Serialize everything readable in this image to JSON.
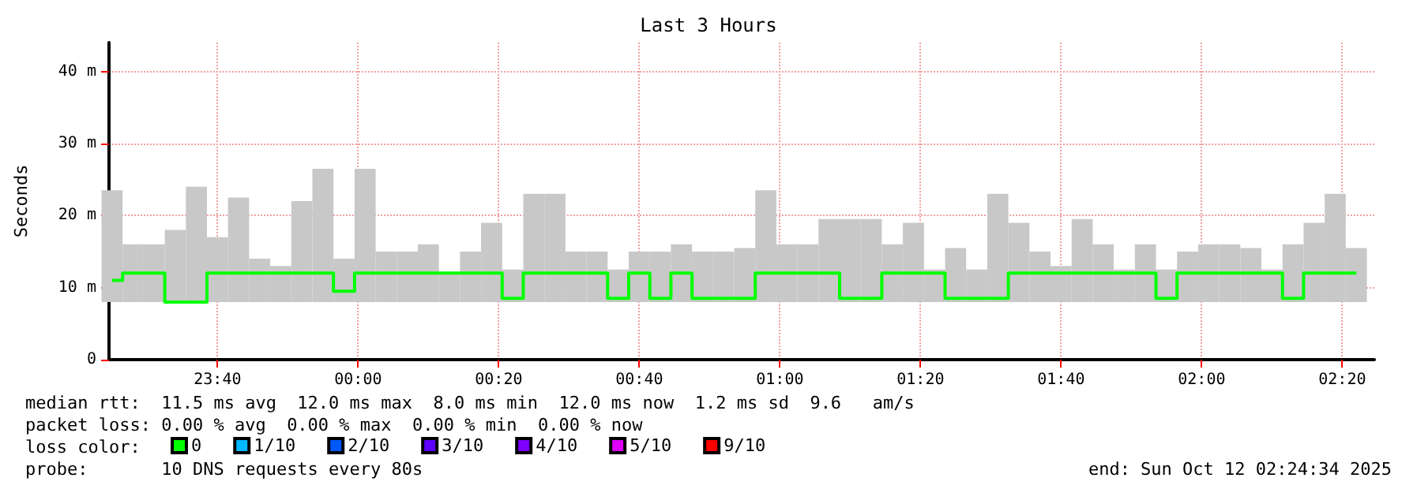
{
  "chart_data": {
    "type": "bar",
    "title": "Last 3 Hours",
    "ylabel": "Seconds",
    "legend_title": "loss color:",
    "x": [
      "2025-10-11T23:25",
      "2025-10-11T23:28",
      "2025-10-11T23:31",
      "2025-10-11T23:34",
      "2025-10-11T23:37",
      "2025-10-11T23:40",
      "2025-10-11T23:43",
      "2025-10-11T23:46",
      "2025-10-11T23:49",
      "2025-10-11T23:52",
      "2025-10-11T23:55",
      "2025-10-11T23:58",
      "2025-10-12T00:01",
      "2025-10-12T00:04",
      "2025-10-12T00:07",
      "2025-10-12T00:10",
      "2025-10-12T00:13",
      "2025-10-12T00:16",
      "2025-10-12T00:19",
      "2025-10-12T00:22",
      "2025-10-12T00:25",
      "2025-10-12T00:28",
      "2025-10-12T00:31",
      "2025-10-12T00:34",
      "2025-10-12T00:37",
      "2025-10-12T00:40",
      "2025-10-12T00:43",
      "2025-10-12T00:46",
      "2025-10-12T00:49",
      "2025-10-12T00:52",
      "2025-10-12T00:55",
      "2025-10-12T00:58",
      "2025-10-12T01:01",
      "2025-10-12T01:04",
      "2025-10-12T01:07",
      "2025-10-12T01:10",
      "2025-10-12T01:13",
      "2025-10-12T01:16",
      "2025-10-12T01:19",
      "2025-10-12T01:22",
      "2025-10-12T01:25",
      "2025-10-12T01:28",
      "2025-10-12T01:31",
      "2025-10-12T01:34",
      "2025-10-12T01:37",
      "2025-10-12T01:40",
      "2025-10-12T01:43",
      "2025-10-12T01:46",
      "2025-10-12T01:49",
      "2025-10-12T01:52",
      "2025-10-12T01:55",
      "2025-10-12T01:58",
      "2025-10-12T02:01",
      "2025-10-12T02:04",
      "2025-10-12T02:07",
      "2025-10-12T02:10",
      "2025-10-12T02:13",
      "2025-10-12T02:16",
      "2025-10-12T02:19",
      "2025-10-12T02:22"
    ],
    "series": [
      {
        "color": "#c8c8c8",
        "base": [
          8,
          8,
          8,
          8,
          8,
          8,
          8,
          8,
          8,
          8,
          8,
          8,
          8,
          8,
          8,
          8,
          8,
          8,
          8,
          8,
          8,
          8,
          8,
          8,
          8,
          8,
          8,
          8,
          8,
          8,
          8,
          8,
          8,
          8,
          8,
          8,
          8,
          8,
          8,
          8,
          8,
          8,
          8,
          8,
          8,
          8,
          8,
          8,
          8,
          8,
          8,
          8,
          8,
          8,
          8,
          8,
          8,
          8,
          8,
          8
        ],
        "values": [
          15.5,
          8,
          8,
          10,
          16,
          9,
          14.5,
          6,
          5,
          14,
          18.5,
          6,
          18.5,
          7,
          7,
          8,
          4,
          7,
          11,
          4.5,
          15,
          15,
          7,
          7,
          4.5,
          7,
          7,
          8,
          7,
          7,
          7.5,
          15.5,
          8,
          8,
          11.5,
          11.5,
          11.5,
          8,
          11,
          4.5,
          7.5,
          4.5,
          15,
          11,
          7,
          5,
          11.5,
          8,
          4.5,
          8,
          4.5,
          7,
          8,
          8,
          7.5,
          4.5,
          8,
          11,
          15,
          7.5
        ]
      },
      {
        "type": "step",
        "name": "0",
        "color": "#00ff00",
        "values": [
          11,
          12,
          12,
          8,
          8,
          12,
          12,
          12,
          12,
          12,
          12,
          9.5,
          12,
          12,
          12,
          12,
          12,
          12,
          12,
          8.5,
          12,
          12,
          12,
          12,
          8.5,
          12,
          8.5,
          12,
          8.5,
          8.5,
          8.5,
          12,
          12,
          12,
          12,
          8.5,
          8.5,
          12,
          12,
          12,
          8.5,
          8.5,
          8.5,
          12,
          12,
          12,
          12,
          12,
          12,
          12,
          8.5,
          12,
          12,
          12,
          12,
          12,
          8.5,
          12,
          12,
          12
        ]
      },
      {
        "type": "step",
        "name": "1/10",
        "color": "#00b8ff",
        "values": [
          null,
          null,
          null,
          null,
          null,
          null,
          null,
          null,
          null,
          null,
          null,
          null,
          null,
          null,
          null,
          null,
          null,
          null,
          null,
          null,
          null,
          null,
          null,
          null,
          null,
          null,
          null,
          null,
          null,
          null,
          null,
          null,
          null,
          null,
          null,
          null,
          null,
          null,
          null,
          null,
          null,
          null,
          null,
          null,
          null,
          null,
          null,
          null,
          null,
          null,
          null,
          null,
          null,
          null,
          null,
          null,
          null,
          null,
          null,
          null
        ]
      },
      {
        "type": "step",
        "name": "2/10",
        "color": "#0059ff",
        "values": [
          null,
          null,
          null,
          null,
          null,
          null,
          null,
          null,
          null,
          null,
          null,
          null,
          null,
          null,
          null,
          null,
          null,
          null,
          null,
          null,
          null,
          null,
          null,
          null,
          null,
          null,
          null,
          null,
          null,
          null,
          null,
          null,
          null,
          null,
          null,
          null,
          null,
          null,
          null,
          null,
          null,
          null,
          null,
          null,
          null,
          null,
          null,
          null,
          null,
          null,
          null,
          null,
          null,
          null,
          null,
          null,
          null,
          null,
          null,
          null
        ]
      },
      {
        "type": "step",
        "name": "3/10",
        "color": "#5e00ff",
        "values": [
          null,
          null,
          null,
          null,
          null,
          null,
          null,
          null,
          null,
          null,
          null,
          null,
          null,
          null,
          null,
          null,
          null,
          null,
          null,
          null,
          null,
          null,
          null,
          null,
          null,
          null,
          null,
          null,
          null,
          null,
          null,
          null,
          null,
          null,
          null,
          null,
          null,
          null,
          null,
          null,
          null,
          null,
          null,
          null,
          null,
          null,
          null,
          null,
          null,
          null,
          null,
          null,
          null,
          null,
          null,
          null,
          null,
          null,
          null,
          null
        ]
      },
      {
        "type": "step",
        "name": "4/10",
        "color": "#7e00ff",
        "values": [
          null,
          null,
          null,
          null,
          null,
          null,
          null,
          null,
          null,
          null,
          null,
          null,
          null,
          null,
          null,
          null,
          null,
          null,
          null,
          null,
          null,
          null,
          null,
          null,
          null,
          null,
          null,
          null,
          null,
          null,
          null,
          null,
          null,
          null,
          null,
          null,
          null,
          null,
          null,
          null,
          null,
          null,
          null,
          null,
          null,
          null,
          null,
          null,
          null,
          null,
          null,
          null,
          null,
          null,
          null,
          null,
          null,
          null,
          null,
          null
        ]
      },
      {
        "type": "step",
        "name": "5/10",
        "color": "#dd00ff",
        "values": [
          null,
          null,
          null,
          null,
          null,
          null,
          null,
          null,
          null,
          null,
          null,
          null,
          null,
          null,
          null,
          null,
          null,
          null,
          null,
          null,
          null,
          null,
          null,
          null,
          null,
          null,
          null,
          null,
          null,
          null,
          null,
          null,
          null,
          null,
          null,
          null,
          null,
          null,
          null,
          null,
          null,
          null,
          null,
          null,
          null,
          null,
          null,
          null,
          null,
          null,
          null,
          null,
          null,
          null,
          null,
          null,
          null,
          null,
          null,
          null
        ]
      },
      {
        "type": "step",
        "name": "9/10",
        "color": "#ff0000",
        "values": [
          null,
          null,
          null,
          null,
          null,
          null,
          null,
          null,
          null,
          null,
          null,
          null,
          null,
          null,
          null,
          null,
          null,
          null,
          null,
          null,
          null,
          null,
          null,
          null,
          null,
          null,
          null,
          null,
          null,
          null,
          null,
          null,
          null,
          null,
          null,
          null,
          null,
          null,
          null,
          null,
          null,
          null,
          null,
          null,
          null,
          null,
          null,
          null,
          null,
          null,
          null,
          null,
          null,
          null,
          null,
          null,
          null,
          null,
          null,
          null
        ]
      }
    ],
    "xlim": [
      "2025-10-11T23:24:34",
      "2025-10-12T02:24:34"
    ],
    "xticks": [
      {
        "value": "2025-10-11T23:40",
        "label": "23:40"
      },
      {
        "value": "2025-10-12T00:00",
        "label": "00:00"
      },
      {
        "value": "2025-10-12T00:20",
        "label": "00:20"
      },
      {
        "value": "2025-10-12T00:40",
        "label": "00:40"
      },
      {
        "value": "2025-10-12T01:00",
        "label": "01:00"
      },
      {
        "value": "2025-10-12T01:20",
        "label": "01:20"
      },
      {
        "value": "2025-10-12T01:40",
        "label": "01:40"
      },
      {
        "value": "2025-10-12T02:00",
        "label": "02:00"
      },
      {
        "value": "2025-10-12T02:20",
        "label": "02:20"
      }
    ],
    "ylim": [
      0,
      44
    ],
    "yticks": [
      0,
      {
        "value": 10,
        "label": "10 m"
      },
      {
        "value": 20,
        "label": "20 m"
      },
      {
        "value": 30,
        "label": "30 m"
      },
      {
        "value": 40,
        "label": "40 m"
      }
    ],
    "grid": true,
    "legend": "bottom",
    "annotations": [
      "median rtt:  11.5 ms avg  12.0 ms max  8.0 ms min  12.0 ms now  1.2 ms sd  9.6   am/s",
      "packet loss: 0.00 % avg  0.00 % max  0.00 % min  0.00 % now",
      "probe:       10 DNS requests every 80s",
      "end: Sun Oct 12 02:24:34 2025"
    ]
  }
}
